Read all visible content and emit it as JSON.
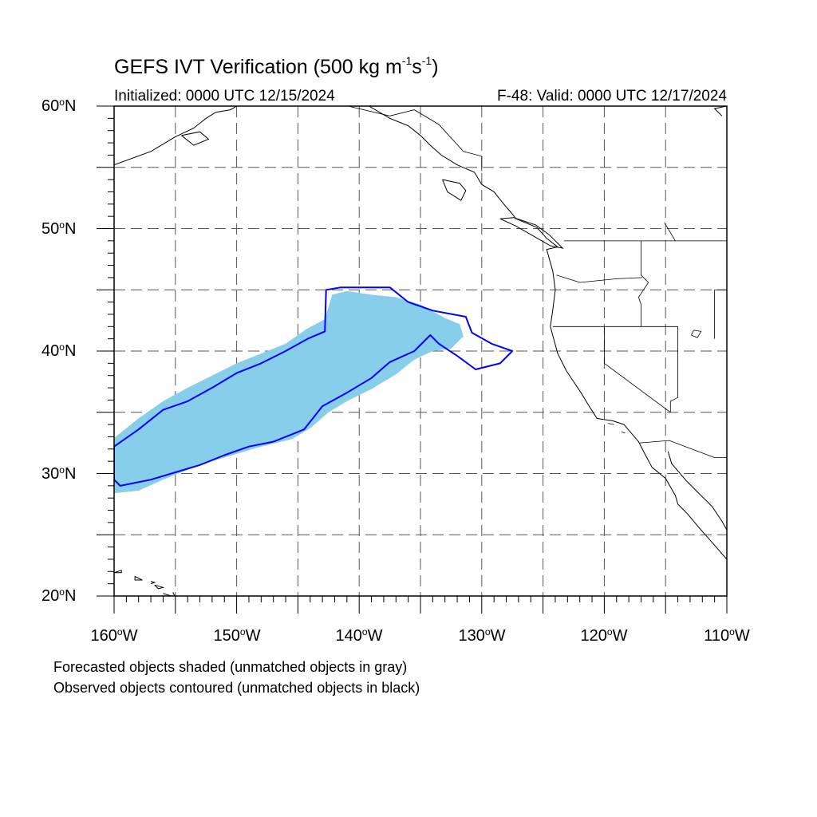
{
  "title": {
    "prefix": "GEFS IVT Verification (500 kg m",
    "exp1": "-1",
    "mid": "s",
    "exp2": "-1",
    "suffix": ")"
  },
  "initialized": "Initialized: 0000 UTC 12/15/2024",
  "valid": "F-48: Valid: 0000 UTC 12/17/2024",
  "lat_labels": [
    {
      "num": "60",
      "hemi": "N"
    },
    {
      "num": "50",
      "hemi": "N"
    },
    {
      "num": "40",
      "hemi": "N"
    },
    {
      "num": "30",
      "hemi": "N"
    },
    {
      "num": "20",
      "hemi": "N"
    }
  ],
  "lon_labels": [
    {
      "num": "160",
      "hemi": "W"
    },
    {
      "num": "150",
      "hemi": "W"
    },
    {
      "num": "140",
      "hemi": "W"
    },
    {
      "num": "130",
      "hemi": "W"
    },
    {
      "num": "120",
      "hemi": "W"
    },
    {
      "num": "110",
      "hemi": "W"
    }
  ],
  "degree_symbol": "o",
  "notes": [
    "Forecasted objects shaded (unmatched objects in gray)",
    "Observed objects contoured (unmatched objects in black)"
  ],
  "colors": {
    "forecast_fill": "#87ceeb",
    "observed_contour": "#0000ff",
    "coastline": "#000000",
    "grid": "#555555"
  },
  "map_extent": {
    "lon_min": -160,
    "lon_max": -110,
    "lat_min": 20,
    "lat_max": 60
  },
  "forecast_object": [
    [
      -160,
      28.4
    ],
    [
      -158,
      28.6
    ],
    [
      -156,
      29.5
    ],
    [
      -154,
      30.3
    ],
    [
      -152,
      31.0
    ],
    [
      -150,
      31.6
    ],
    [
      -148,
      32.2
    ],
    [
      -145.5,
      32.8
    ],
    [
      -144,
      33.7
    ],
    [
      -142.5,
      35.0
    ],
    [
      -141,
      35.9
    ],
    [
      -139,
      36.9
    ],
    [
      -137,
      38.1
    ],
    [
      -135.5,
      39.3
    ],
    [
      -134,
      40.0
    ],
    [
      -132.5,
      40.2
    ],
    [
      -131.5,
      41.2
    ],
    [
      -131.8,
      42.2
    ],
    [
      -133,
      42.7
    ],
    [
      -135,
      43.8
    ],
    [
      -137,
      44.4
    ],
    [
      -139,
      44.6
    ],
    [
      -141,
      44.9
    ],
    [
      -142.2,
      44.6
    ],
    [
      -142.8,
      42.6
    ],
    [
      -144.3,
      41.8
    ],
    [
      -146,
      40.6
    ],
    [
      -148,
      39.8
    ],
    [
      -150,
      39.0
    ],
    [
      -152,
      38.0
    ],
    [
      -154,
      37.0
    ],
    [
      -156,
      35.9
    ],
    [
      -158,
      34.5
    ],
    [
      -160,
      32.9
    ]
  ],
  "observed_object": [
    [
      -160,
      32.2
    ],
    [
      -158,
      33.6
    ],
    [
      -156,
      35.2
    ],
    [
      -154,
      35.9
    ],
    [
      -152,
      37.0
    ],
    [
      -150,
      38.2
    ],
    [
      -148,
      39.0
    ],
    [
      -146,
      40.0
    ],
    [
      -144.2,
      41.0
    ],
    [
      -142.8,
      41.6
    ],
    [
      -142.7,
      45.0
    ],
    [
      -141.5,
      45.2
    ],
    [
      -137.5,
      45.2
    ],
    [
      -136,
      44.0
    ],
    [
      -134,
      43.3
    ],
    [
      -131.3,
      42.8
    ],
    [
      -130.8,
      41.5
    ],
    [
      -129.2,
      40.6
    ],
    [
      -127.5,
      40.0
    ],
    [
      -128.5,
      39.0
    ],
    [
      -130.5,
      38.5
    ],
    [
      -132,
      39.6
    ],
    [
      -133.5,
      40.6
    ],
    [
      -134.2,
      41.3
    ],
    [
      -135.5,
      40.0
    ],
    [
      -137.5,
      39.1
    ],
    [
      -139,
      37.8
    ],
    [
      -141,
      36.6
    ],
    [
      -143,
      35.5
    ],
    [
      -144.5,
      33.6
    ],
    [
      -145.5,
      33.2
    ],
    [
      -147,
      32.6
    ],
    [
      -149,
      32.2
    ],
    [
      -151,
      31.5
    ],
    [
      -153,
      30.7
    ],
    [
      -155,
      30.1
    ],
    [
      -157,
      29.5
    ],
    [
      -159.5,
      29.0
    ],
    [
      -160,
      29.5
    ]
  ],
  "coastlines": [
    [
      [
        -160,
        55.2
      ],
      [
        -157,
        56.3
      ],
      [
        -155,
        57.5
      ],
      [
        -153.5,
        58.2
      ],
      [
        -152.5,
        59.0
      ],
      [
        -151.7,
        59.5
      ],
      [
        -150.5,
        59.7
      ],
      [
        -150,
        60
      ]
    ],
    [
      [
        -154.5,
        57.6
      ],
      [
        -153,
        57.9
      ],
      [
        -152.3,
        57.3
      ],
      [
        -153.5,
        56.8
      ],
      [
        -154.5,
        57.6
      ]
    ],
    [
      [
        -139.2,
        60
      ],
      [
        -137.5,
        59.0
      ],
      [
        -136.0,
        58.4
      ],
      [
        -135.0,
        57.6
      ],
      [
        -134.2,
        56.8
      ],
      [
        -133.3,
        56.0
      ],
      [
        -132.0,
        55.2
      ],
      [
        -130.6,
        54.6
      ],
      [
        -130.0,
        53.6
      ],
      [
        -129.0,
        53.0
      ],
      [
        -128.2,
        52.0
      ],
      [
        -127.6,
        51.3
      ],
      [
        -127.2,
        50.8
      ],
      [
        -125.5,
        50.1
      ],
      [
        -124.7,
        49.2
      ],
      [
        -123.8,
        48.5
      ],
      [
        -124.7,
        48.3
      ],
      [
        -124.2,
        46.5
      ],
      [
        -124.0,
        45.0
      ],
      [
        -124.2,
        43.4
      ],
      [
        -124.4,
        42.0
      ],
      [
        -124.1,
        40.9
      ],
      [
        -123.8,
        39.8
      ],
      [
        -123.1,
        38.4
      ],
      [
        -122.5,
        37.5
      ],
      [
        -121.9,
        36.6
      ],
      [
        -121.3,
        35.6
      ],
      [
        -120.6,
        34.5
      ],
      [
        -119.3,
        34.3
      ],
      [
        -118.4,
        34.0
      ],
      [
        -117.2,
        32.6
      ],
      [
        -116.8,
        31.8
      ],
      [
        -116.1,
        30.5
      ],
      [
        -115.0,
        29.6
      ],
      [
        -114.2,
        28.2
      ],
      [
        -114.0,
        27.5
      ],
      [
        -113.2,
        26.7
      ],
      [
        -112.2,
        25.5
      ],
      [
        -111.4,
        24.6
      ],
      [
        -110.0,
        23.0
      ]
    ],
    [
      [
        -114.8,
        31.8
      ],
      [
        -114.5,
        30.8
      ],
      [
        -113.3,
        29.4
      ],
      [
        -112.7,
        28.8
      ],
      [
        -112.0,
        28.1
      ],
      [
        -111.2,
        27.3
      ],
      [
        -110.4,
        26.1
      ],
      [
        -110.0,
        25.4
      ]
    ],
    [
      [
        -133.2,
        54.0
      ],
      [
        -131.8,
        53.7
      ],
      [
        -131.3,
        53.1
      ],
      [
        -131.7,
        52.3
      ],
      [
        -132.8,
        53.0
      ],
      [
        -133.2,
        54.0
      ]
    ],
    [
      [
        -128.5,
        50.8
      ],
      [
        -127.2,
        50.2
      ],
      [
        -125.8,
        49.4
      ],
      [
        -124.4,
        48.6
      ],
      [
        -123.4,
        48.4
      ],
      [
        -124.5,
        49.5
      ],
      [
        -125.6,
        50.3
      ],
      [
        -127.4,
        50.9
      ],
      [
        -128.5,
        50.8
      ]
    ],
    [
      [
        -160,
        21.9
      ],
      [
        -159.4,
        22.1
      ],
      [
        -159.4,
        21.9
      ],
      [
        -160,
        21.9
      ]
    ],
    [
      [
        -158.3,
        21.6
      ],
      [
        -157.7,
        21.3
      ],
      [
        -158.3,
        21.3
      ],
      [
        -158.3,
        21.6
      ]
    ],
    [
      [
        -157.0,
        21.2
      ],
      [
        -156.7,
        21.1
      ],
      [
        -157.0,
        21.0
      ]
    ],
    [
      [
        -156.7,
        20.9
      ],
      [
        -156.0,
        20.7
      ],
      [
        -156.4,
        20.6
      ],
      [
        -156.7,
        20.9
      ]
    ],
    [
      [
        -156.0,
        20.2
      ],
      [
        -155.0,
        19.9
      ],
      [
        -155.2,
        20.3
      ]
    ],
    [
      [
        -110.4,
        59.2
      ],
      [
        -111.0,
        59.8
      ],
      [
        -110.0,
        60
      ]
    ]
  ],
  "borders": [
    [
      [
        -140.9,
        60
      ],
      [
        -137.5,
        59.2
      ],
      [
        -135.5,
        59.7
      ],
      [
        -133.5,
        58.5
      ],
      [
        -131.5,
        56.3
      ],
      [
        -130.0,
        55.9
      ],
      [
        -130.0,
        54.7
      ]
    ],
    [
      [
        -123.3,
        49
      ],
      [
        -110,
        49
      ]
    ],
    [
      [
        -117.0,
        49
      ],
      [
        -117.0,
        46.2
      ],
      [
        -116.4,
        45.6
      ],
      [
        -117.2,
        44.4
      ],
      [
        -117.0,
        43.8
      ],
      [
        -117.0,
        42
      ]
    ],
    [
      [
        -123.9,
        46.2
      ],
      [
        -122.0,
        45.6
      ],
      [
        -119.0,
        45.9
      ],
      [
        -116.9,
        46.0
      ]
    ],
    [
      [
        -124.2,
        42
      ],
      [
        -114.0,
        42
      ]
    ],
    [
      [
        -120.0,
        42
      ],
      [
        -120.0,
        39.0
      ],
      [
        -114.6,
        35.0
      ]
    ],
    [
      [
        -114.0,
        42
      ],
      [
        -114.0,
        36.2
      ],
      [
        -114.6,
        35.9
      ],
      [
        -114.6,
        35.0
      ]
    ],
    [
      [
        -111.0,
        45.0
      ],
      [
        -110,
        45.0
      ]
    ],
    [
      [
        -111.0,
        45
      ],
      [
        -111.0,
        41.0
      ]
    ],
    [
      [
        -117.1,
        32.5
      ],
      [
        -114.7,
        32.7
      ],
      [
        -111.0,
        31.3
      ],
      [
        -110,
        31.3
      ]
    ],
    [
      [
        -115.1,
        50.5
      ],
      [
        -114.2,
        49.0
      ]
    ]
  ],
  "lakes": [
    [
      [
        -112.7,
        41.7
      ],
      [
        -112.1,
        41.6
      ],
      [
        -112.4,
        41.1
      ],
      [
        -112.9,
        41.3
      ],
      [
        -112.7,
        41.7
      ]
    ],
    [
      [
        -119.7,
        34.1
      ],
      [
        -119.2,
        34.0
      ]
    ],
    [
      [
        -118.6,
        33.4
      ],
      [
        -118.3,
        33.3
      ]
    ]
  ]
}
